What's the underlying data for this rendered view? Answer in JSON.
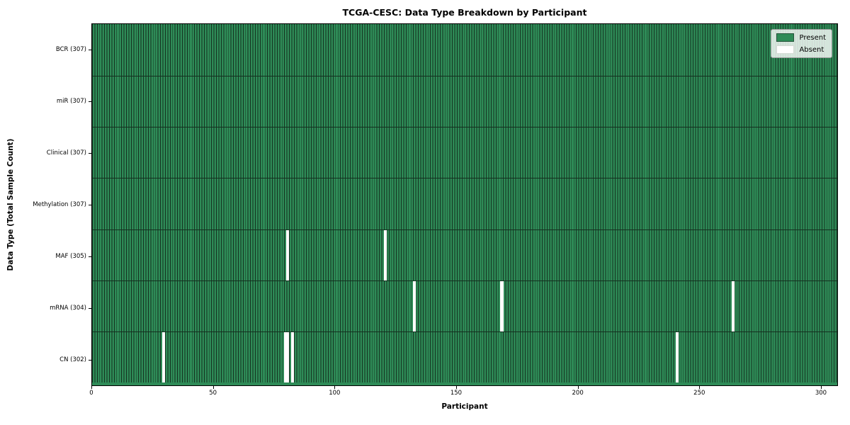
{
  "chart_data": {
    "type": "heatmap",
    "title": "TCGA-CESC: Data Type Breakdown by Participant",
    "xlabel": "Participant",
    "ylabel": "Data Type (Total Sample Count)",
    "x_ticks": [
      0,
      50,
      100,
      150,
      200,
      250,
      300
    ],
    "n_participants": 307,
    "legend": [
      {
        "label": "Present",
        "color": "#2e8b57"
      },
      {
        "label": "Absent",
        "color": "#ffffff"
      }
    ],
    "rows": [
      {
        "label": "BCR (307)",
        "data_type": "BCR",
        "total": 307,
        "absent_participants": []
      },
      {
        "label": "miR (307)",
        "data_type": "miR",
        "total": 307,
        "absent_participants": []
      },
      {
        "label": "Clinical (307)",
        "data_type": "Clinical",
        "total": 307,
        "absent_participants": []
      },
      {
        "label": "Methylation (307)",
        "data_type": "Methylation",
        "total": 307,
        "absent_participants": []
      },
      {
        "label": "MAF (305)",
        "data_type": "MAF",
        "total": 305,
        "absent_participants": [
          80,
          120
        ]
      },
      {
        "label": "mRNA (304)",
        "data_type": "mRNA",
        "total": 304,
        "absent_participants": [
          132,
          168,
          263
        ]
      },
      {
        "label": "CN (302)",
        "data_type": "CN",
        "total": 302,
        "absent_participants": [
          29,
          79,
          80,
          82,
          240
        ]
      }
    ],
    "colors": {
      "present": "#2e8b57",
      "absent": "#ffffff",
      "cell_edge": "#14301f",
      "spine": "#000000"
    },
    "legend_position": "upper right",
    "grid": false
  }
}
